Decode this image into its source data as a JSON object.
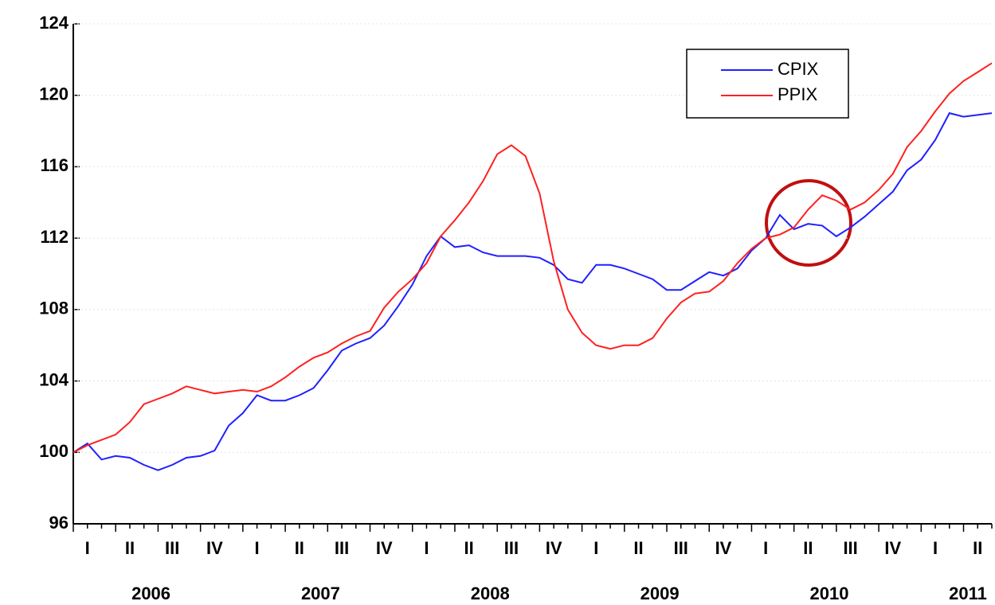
{
  "chart_data": {
    "type": "line",
    "quarters": [
      "I",
      "II",
      "III",
      "IV",
      "I",
      "II",
      "III",
      "IV",
      "I",
      "II",
      "III",
      "IV",
      "I",
      "II",
      "III",
      "IV",
      "I",
      "II",
      "III",
      "IV",
      "I",
      "II"
    ],
    "years": [
      "2006",
      "2007",
      "2008",
      "2009",
      "2010",
      "2011"
    ],
    "series": [
      {
        "name": "CPIX",
        "color": "#2020ff",
        "values": [
          100.0,
          100.5,
          99.6,
          99.8,
          99.7,
          99.3,
          99.0,
          99.3,
          99.7,
          99.8,
          100.1,
          101.5,
          102.2,
          103.2,
          102.9,
          102.9,
          103.2,
          103.6,
          104.6,
          105.7,
          106.1,
          106.4,
          107.1,
          108.2,
          109.4,
          111.0,
          112.1,
          111.5,
          111.6,
          111.2,
          111.0,
          111.0,
          111.0,
          110.9,
          110.5,
          109.7,
          109.5,
          110.5,
          110.5,
          110.3,
          110.0,
          109.7,
          109.1,
          109.1,
          109.6,
          110.1,
          109.9,
          110.3,
          111.3,
          112.0,
          113.3,
          112.5,
          112.8,
          112.7,
          112.1,
          112.6,
          113.2,
          113.9,
          114.6,
          115.8,
          116.4,
          117.5,
          119.0,
          118.8,
          118.9,
          119.0
        ]
      },
      {
        "name": "PPIX",
        "color": "#ff2020",
        "values": [
          100.0,
          100.4,
          100.7,
          101.0,
          101.7,
          102.7,
          103.0,
          103.3,
          103.7,
          103.5,
          103.3,
          103.4,
          103.5,
          103.4,
          103.7,
          104.2,
          104.8,
          105.3,
          105.6,
          106.1,
          106.5,
          106.8,
          108.1,
          109.0,
          109.7,
          110.6,
          112.1,
          113.0,
          114.0,
          115.2,
          116.7,
          117.2,
          116.6,
          114.5,
          110.7,
          108.0,
          106.7,
          106.0,
          105.8,
          106.0,
          106.0,
          106.4,
          107.5,
          108.4,
          108.9,
          109.0,
          109.6,
          110.6,
          111.4,
          112.0,
          112.2,
          112.6,
          113.6,
          114.4,
          114.1,
          113.6,
          114.0,
          114.7,
          115.6,
          117.1,
          118.0,
          119.1,
          120.1,
          120.8,
          121.3,
          121.8
        ]
      }
    ],
    "ylim": [
      96,
      124
    ],
    "yticks": [
      96,
      100,
      104,
      108,
      112,
      116,
      120,
      124
    ],
    "grid": true,
    "legend": "top-right"
  }
}
